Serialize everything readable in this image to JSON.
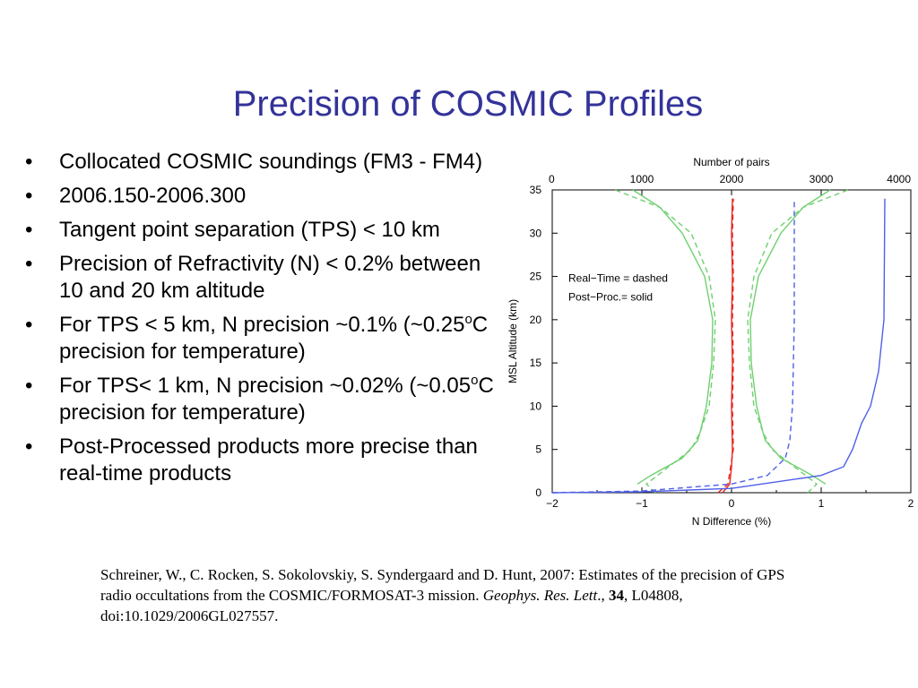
{
  "slide": {
    "title": "Precision of COSMIC Profiles",
    "bullet_glyph": "•",
    "bullets": [
      {
        "text": "Collocated COSMIC soundings (FM3 - FM4)"
      },
      {
        "text": "2006.150-2006.300"
      },
      {
        "text": "Tangent point separation (TPS) < 10 km"
      },
      {
        "text": "Precision of Refractivity (N) < 0.2% between 10 and 20 km altitude"
      },
      {
        "pre": "For TPS < 5 km, N precision ~0.1% (~0.25",
        "sup": "o",
        "post": "C precision for temperature)"
      },
      {
        "pre": "For TPS< 1 km, N precision ~0.02% (~0.05",
        "sup": "o",
        "post": "C precision for temperature)"
      },
      {
        "text": "Post-Processed products more precise than real-time products"
      }
    ],
    "citation": {
      "authors": "Schreiner, W., C. Rocken, S. Sokolovskiy, S. Syndergaard and D. Hunt, 2007: Estimates of the precision of GPS radio occultations from the COSMIC/FORMOSAT-3 mission. ",
      "journal": "Geophys. Res. Lett",
      "after_journal": "., ",
      "volume": "34",
      "rest": ", L04808, doi:10.1029/2006GL027557."
    }
  },
  "chart_data": {
    "type": "line",
    "title": "",
    "xlabel": "N Difference (%)",
    "ylabel": "MSL Altitude (km)",
    "top_axis_label": "Number of pairs",
    "xlim": [
      -2,
      2
    ],
    "ylim": [
      0,
      35
    ],
    "top_xlim": [
      0,
      4000
    ],
    "x_ticks": [
      "−2",
      "−1",
      "0",
      "1",
      "2"
    ],
    "y_ticks": [
      "0",
      "5",
      "10",
      "15",
      "20",
      "25",
      "30",
      "35"
    ],
    "top_ticks": [
      "0",
      "1000",
      "2000",
      "3000",
      "4000"
    ],
    "legend_lines": [
      "Real−Time = dashed",
      "Post−Proc.= solid"
    ],
    "legend_position": "upper-left",
    "colors": {
      "mean": "#e8261e",
      "std": "#6fd06f",
      "pairs": "#4f5fe8",
      "axes": "#000000"
    },
    "series": [
      {
        "style": "solid",
        "color": "mean",
        "axis": "bottom",
        "points": [
          [
            -0.1,
            0
          ],
          [
            -0.02,
            1
          ],
          [
            0,
            3
          ],
          [
            0.01,
            5
          ],
          [
            0,
            10
          ],
          [
            0.01,
            15
          ],
          [
            0,
            20
          ],
          [
            0.01,
            25
          ],
          [
            0,
            30
          ],
          [
            0.01,
            34
          ]
        ]
      },
      {
        "style": "dashed",
        "color": "mean",
        "axis": "bottom",
        "points": [
          [
            -0.15,
            0
          ],
          [
            -0.04,
            1
          ],
          [
            -0.01,
            3
          ],
          [
            0.02,
            5
          ],
          [
            0.01,
            10
          ],
          [
            0.02,
            15
          ],
          [
            0.01,
            20
          ],
          [
            0.02,
            25
          ],
          [
            0.01,
            30
          ],
          [
            0.02,
            34
          ]
        ]
      },
      {
        "style": "solid",
        "color": "std",
        "axis": "bottom",
        "points": [
          [
            1.05,
            1
          ],
          [
            0.9,
            2
          ],
          [
            0.55,
            4
          ],
          [
            0.38,
            6
          ],
          [
            0.35,
            7
          ],
          [
            0.28,
            10
          ],
          [
            0.22,
            15
          ],
          [
            0.21,
            20
          ],
          [
            0.3,
            25
          ],
          [
            0.55,
            30
          ],
          [
            0.8,
            33
          ],
          [
            1.1,
            35
          ]
        ]
      },
      {
        "style": "solid",
        "color": "std",
        "axis": "bottom",
        "points": [
          [
            -1.05,
            1
          ],
          [
            -0.9,
            2
          ],
          [
            -0.55,
            4
          ],
          [
            -0.38,
            6
          ],
          [
            -0.35,
            7
          ],
          [
            -0.28,
            10
          ],
          [
            -0.22,
            15
          ],
          [
            -0.21,
            20
          ],
          [
            -0.3,
            25
          ],
          [
            -0.55,
            30
          ],
          [
            -0.8,
            33
          ],
          [
            -1.1,
            35
          ]
        ]
      },
      {
        "style": "dashed",
        "color": "std",
        "axis": "bottom",
        "points": [
          [
            0.85,
            0
          ],
          [
            0.95,
            1
          ],
          [
            0.7,
            3
          ],
          [
            0.45,
            5
          ],
          [
            0.35,
            7
          ],
          [
            0.25,
            10
          ],
          [
            0.2,
            15
          ],
          [
            0.18,
            20
          ],
          [
            0.25,
            25
          ],
          [
            0.45,
            30
          ],
          [
            0.8,
            33
          ],
          [
            1.3,
            35
          ]
        ]
      },
      {
        "style": "dashed",
        "color": "std",
        "axis": "bottom",
        "points": [
          [
            -0.85,
            0
          ],
          [
            -0.95,
            1
          ],
          [
            -0.7,
            3
          ],
          [
            -0.45,
            5
          ],
          [
            -0.35,
            7
          ],
          [
            -0.25,
            10
          ],
          [
            -0.2,
            15
          ],
          [
            -0.18,
            20
          ],
          [
            -0.25,
            25
          ],
          [
            -0.45,
            30
          ],
          [
            -0.8,
            33
          ],
          [
            -1.3,
            35
          ]
        ]
      },
      {
        "style": "solid",
        "color": "pairs",
        "axis": "top",
        "points": [
          [
            0,
            0
          ],
          [
            1000,
            0.1
          ],
          [
            2000,
            0.5
          ],
          [
            3000,
            2
          ],
          [
            3250,
            3
          ],
          [
            3350,
            5
          ],
          [
            3450,
            8
          ],
          [
            3550,
            10
          ],
          [
            3640,
            14
          ],
          [
            3680,
            18
          ],
          [
            3700,
            20
          ],
          [
            3710,
            34
          ]
        ]
      },
      {
        "style": "dashed",
        "color": "pairs",
        "axis": "top",
        "points": [
          [
            0,
            0
          ],
          [
            1000,
            0.2
          ],
          [
            2000,
            1
          ],
          [
            2400,
            2
          ],
          [
            2600,
            4
          ],
          [
            2650,
            6
          ],
          [
            2680,
            10
          ],
          [
            2700,
            20
          ],
          [
            2700,
            34
          ]
        ]
      }
    ]
  }
}
